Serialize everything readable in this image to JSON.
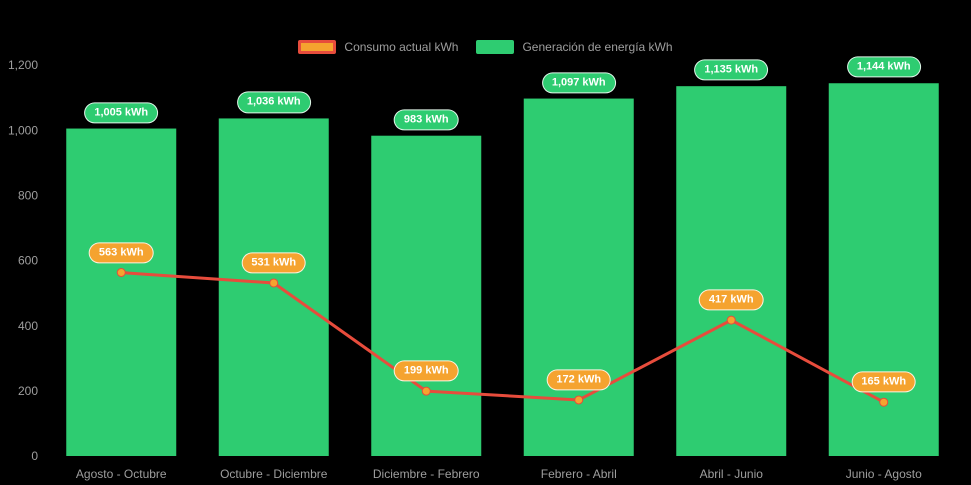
{
  "chart_data": {
    "type": "bar",
    "subtype": "bar+line combo",
    "title": "",
    "categories": [
      "Agosto - Octubre",
      "Octubre - Diciembre",
      "Diciembre - Febrero",
      "Febrero - Abril",
      "Abril - Junio",
      "Junio - Agosto"
    ],
    "series": [
      {
        "name": "Consumo actual kWh",
        "type": "line",
        "color": "#e74c3c",
        "point_color": "#f5a32f",
        "values": [
          563,
          531,
          199,
          172,
          417,
          165
        ],
        "labels": [
          "563 kWh",
          "531 kWh",
          "199 kWh",
          "172 kWh",
          "417 kWh",
          "165 kWh"
        ]
      },
      {
        "name": "Generación de energía kWh",
        "type": "bar",
        "color": "#2ecc71",
        "values": [
          1005,
          1036,
          983,
          1097,
          1135,
          1144
        ],
        "labels": [
          "1,005 kWh",
          "1,036 kWh",
          "983 kWh",
          "1,097 kWh",
          "1,135 kWh",
          "1,144 kWh"
        ]
      }
    ],
    "ylim": [
      0,
      1200
    ],
    "yticks": [
      "0",
      "200",
      "400",
      "600",
      "800",
      "1,000",
      "1,200"
    ],
    "legend_position": "top",
    "grid": false,
    "background": "#000000",
    "text_color": "#9e9e9e"
  }
}
